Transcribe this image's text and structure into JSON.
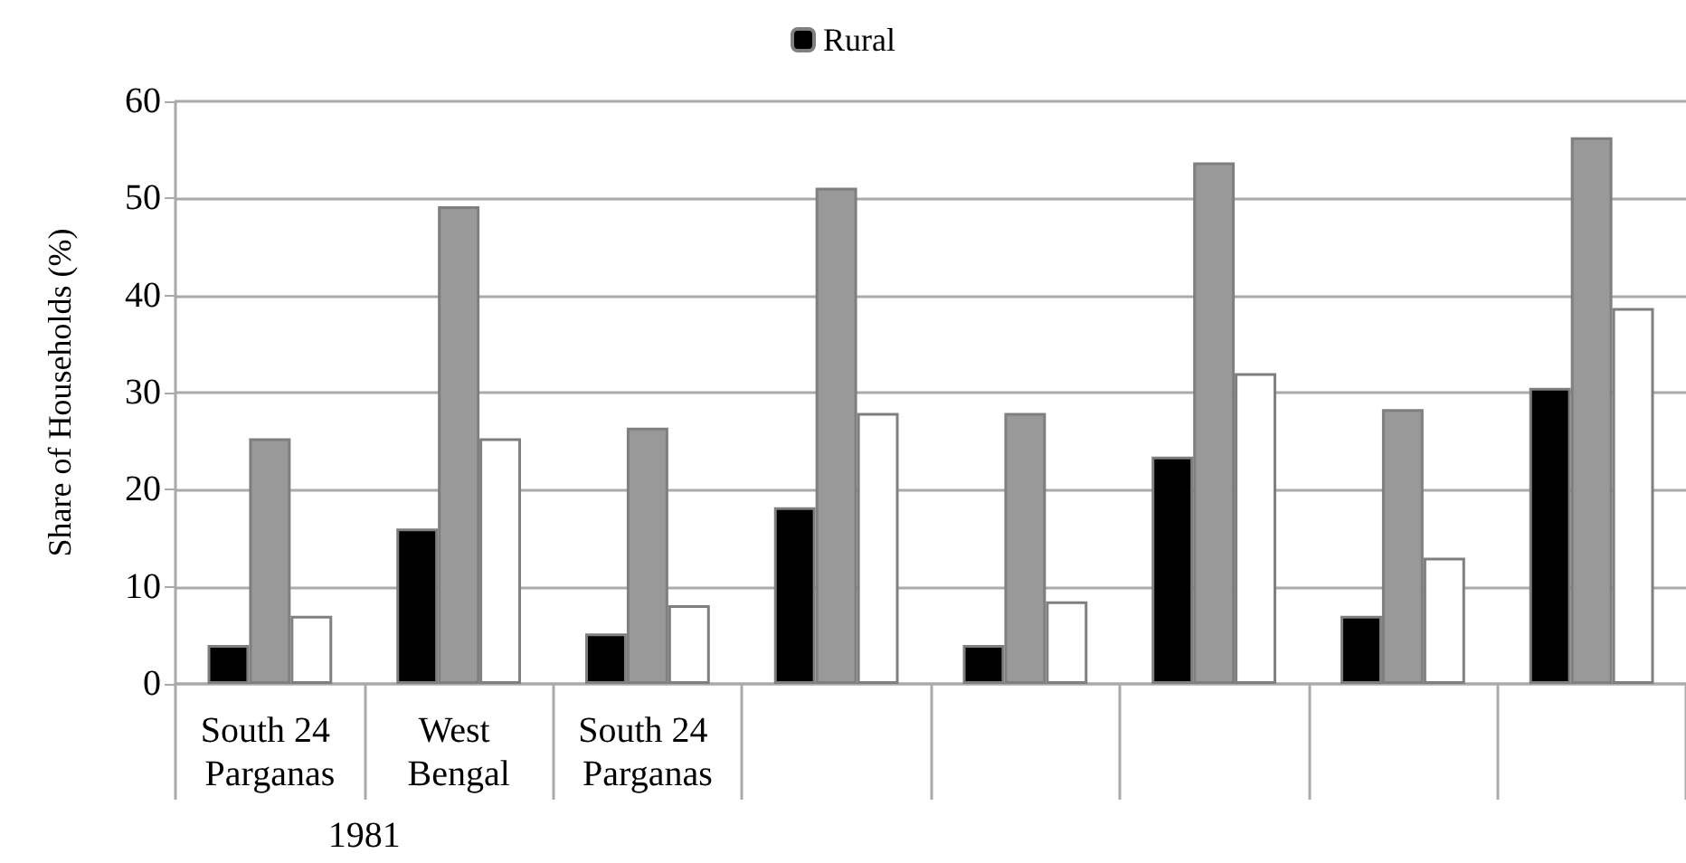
{
  "chart_data": {
    "type": "bar",
    "ylabel": "Share of Households (%)",
    "categories": [
      "South 24 Parganas",
      "West Bengal",
      "South 24 Parganas",
      null,
      null,
      null,
      null,
      null
    ],
    "series": [
      {
        "name": "Rural",
        "color": "#000000",
        "values": [
          4,
          16,
          5.2,
          18.2,
          4,
          23.4,
          7,
          30.5
        ]
      },
      {
        "color": "#999999",
        "values": [
          25.3,
          49.2,
          26.4,
          51.1,
          27.9,
          53.7,
          28.3,
          56.3
        ]
      },
      {
        "color": "#ffffff",
        "values": [
          7,
          25.3,
          8.1,
          27.9,
          8.5,
          32,
          13,
          38.7
        ]
      }
    ],
    "annotations": [
      "1981"
    ],
    "ylim": [
      0,
      60
    ],
    "yticks": [
      0,
      10,
      20,
      30,
      40,
      50,
      60
    ],
    "grid": "y",
    "legend": "top"
  }
}
